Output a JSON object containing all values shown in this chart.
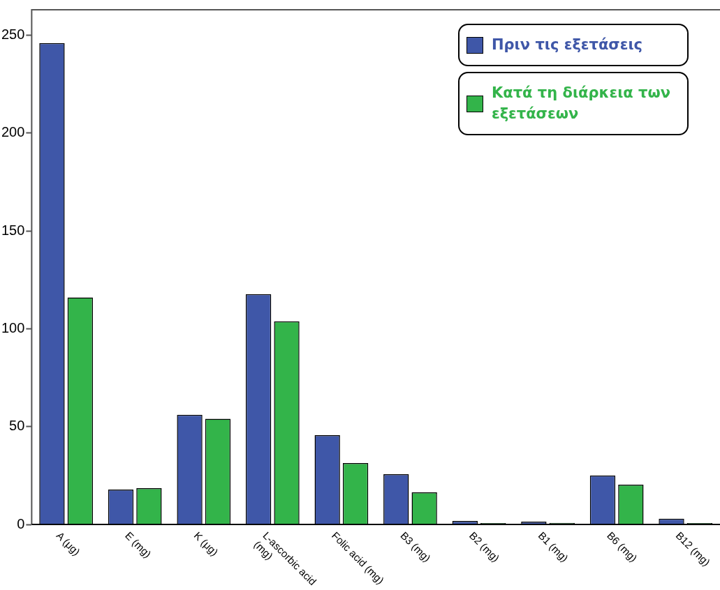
{
  "chart_data": {
    "type": "bar",
    "categories": [
      "A (μg)",
      "E (mg)",
      "K (μg)",
      "L-ascorbic acid (mg)",
      "Folic acid (mg)",
      "B3 (mg)",
      "B2 (mg)",
      "B1 (mg)",
      "B6 (mg)",
      "B12 (mg)"
    ],
    "series": [
      {
        "name": "Πριν τις εξετάσεις",
        "color": "#3f57a8",
        "values": [
          246,
          17.8,
          56,
          117.7,
          45.6,
          25.7,
          1.8,
          1.4,
          25,
          2.9
        ]
      },
      {
        "name": "Κατά τη διάρκεια των εξετάσεων",
        "color": "#33b44a",
        "values": [
          116,
          18.5,
          54,
          103.8,
          31.4,
          16.4,
          0.7,
          0.8,
          20.3,
          0.7
        ]
      }
    ],
    "ylim": [
      0,
      263
    ],
    "yticks": [
      0,
      50,
      100,
      150,
      200,
      250
    ],
    "grid": false,
    "legend": "top right"
  }
}
